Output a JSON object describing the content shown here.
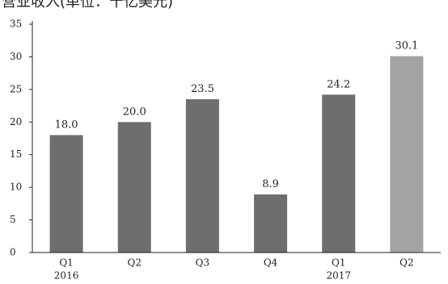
{
  "chart_data": {
    "type": "bar",
    "title": "营业收入(单位：十亿美元)",
    "categories": [
      "Q1",
      "Q2",
      "Q3",
      "Q4",
      "Q1",
      "Q2"
    ],
    "year_labels": [
      "2016",
      "",
      "",
      "",
      "2017",
      ""
    ],
    "values": [
      18.0,
      20.0,
      23.5,
      8.9,
      24.2,
      30.1
    ],
    "value_labels": [
      "18.0",
      "20.0",
      "23.5",
      "8.9",
      "24.2",
      "30.1"
    ],
    "ylim": [
      0,
      35
    ],
    "yticks": [
      0,
      5,
      10,
      15,
      20,
      25,
      30,
      35
    ],
    "xlabel": "",
    "ylabel": "",
    "grid": false,
    "colors": {
      "bar": "#6e6e6e",
      "highlight_bar": "#a3a3a3",
      "axis": "#222222"
    },
    "highlight_index": 5
  }
}
